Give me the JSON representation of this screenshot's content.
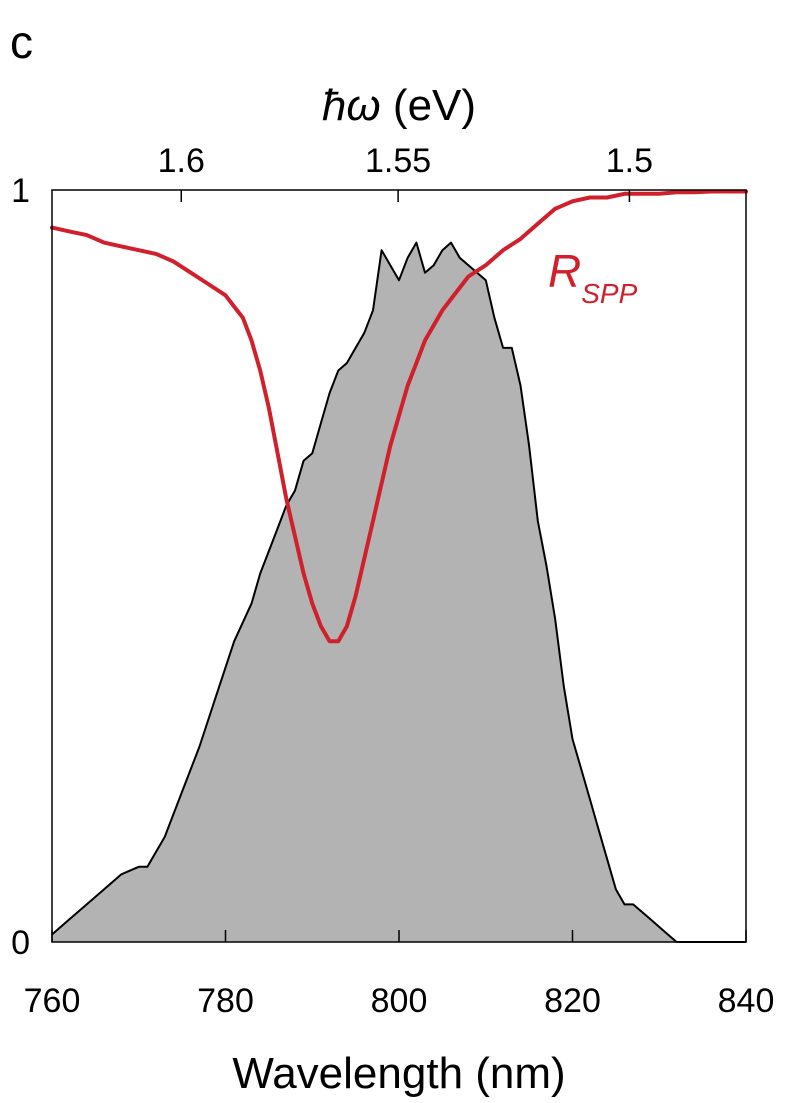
{
  "panel_label": "c",
  "chart_data": {
    "type": "area",
    "xlabel": "Wavelength (nm)",
    "x2label_symbol": "ħω",
    "x2label_unit": " (eV)",
    "xlim": [
      760,
      840
    ],
    "ylim": [
      0,
      1
    ],
    "x_ticks": [
      760,
      780,
      800,
      820,
      840
    ],
    "x2_ticks": [
      1.6,
      1.55,
      1.5
    ],
    "x2_tick_labels": [
      "1.6",
      "1.55",
      "1.5"
    ],
    "y_ticks": [
      0,
      1
    ],
    "y_tick_labels": [
      "0",
      "1"
    ],
    "grid": false,
    "colors": {
      "spectrum_fill": "#b3b3b3",
      "spectrum_line": "#000000",
      "reflectance": "#d0202c"
    },
    "series": [
      {
        "id": "spectrum",
        "render": "filled-area",
        "x": [
          760,
          762,
          764,
          766,
          768,
          770,
          771,
          773,
          775,
          777,
          779,
          781,
          783,
          784,
          785,
          786,
          787,
          788,
          789,
          790,
          791,
          792,
          793,
          794,
          795,
          796,
          797,
          798,
          799,
          800,
          801,
          802,
          803,
          804,
          805,
          806,
          807,
          808,
          809,
          810,
          811,
          812,
          813,
          814,
          815,
          816,
          817,
          818,
          819,
          820,
          821,
          822,
          823,
          824,
          825,
          826,
          827,
          828,
          829,
          830,
          831,
          832,
          834,
          836,
          838,
          840
        ],
        "y": [
          0.01,
          0.03,
          0.05,
          0.07,
          0.09,
          0.1,
          0.1,
          0.14,
          0.2,
          0.26,
          0.33,
          0.4,
          0.45,
          0.49,
          0.52,
          0.55,
          0.58,
          0.6,
          0.64,
          0.65,
          0.69,
          0.73,
          0.76,
          0.77,
          0.79,
          0.81,
          0.84,
          0.92,
          0.9,
          0.88,
          0.91,
          0.93,
          0.89,
          0.9,
          0.92,
          0.93,
          0.91,
          0.9,
          0.89,
          0.88,
          0.83,
          0.79,
          0.79,
          0.74,
          0.66,
          0.56,
          0.5,
          0.43,
          0.34,
          0.27,
          0.23,
          0.19,
          0.15,
          0.11,
          0.07,
          0.05,
          0.05,
          0.04,
          0.03,
          0.02,
          0.01,
          0.0,
          0.0,
          0.0,
          0.0,
          0.0
        ]
      },
      {
        "id": "reflectance",
        "name": "R",
        "name_subscript": "SPP",
        "render": "line",
        "x": [
          760,
          762,
          764,
          766,
          768,
          770,
          772,
          774,
          776,
          778,
          780,
          781,
          782,
          783,
          784,
          785,
          786,
          787,
          788,
          789,
          790,
          791,
          792,
          793,
          794,
          795,
          796,
          797,
          798,
          799,
          800,
          801,
          802,
          803,
          804,
          805,
          806,
          808,
          810,
          812,
          814,
          816,
          818,
          820,
          822,
          824,
          826,
          828,
          830,
          832,
          834,
          836,
          838,
          840
        ],
        "y": [
          0.95,
          0.945,
          0.94,
          0.93,
          0.925,
          0.92,
          0.915,
          0.905,
          0.89,
          0.875,
          0.86,
          0.845,
          0.83,
          0.8,
          0.76,
          0.71,
          0.65,
          0.59,
          0.54,
          0.49,
          0.45,
          0.42,
          0.4,
          0.4,
          0.42,
          0.46,
          0.51,
          0.56,
          0.61,
          0.66,
          0.7,
          0.74,
          0.77,
          0.8,
          0.82,
          0.84,
          0.855,
          0.885,
          0.9,
          0.92,
          0.935,
          0.955,
          0.975,
          0.985,
          0.99,
          0.99,
          0.995,
          0.995,
          0.995,
          0.997,
          0.997,
          0.998,
          0.998,
          0.998
        ]
      }
    ]
  }
}
